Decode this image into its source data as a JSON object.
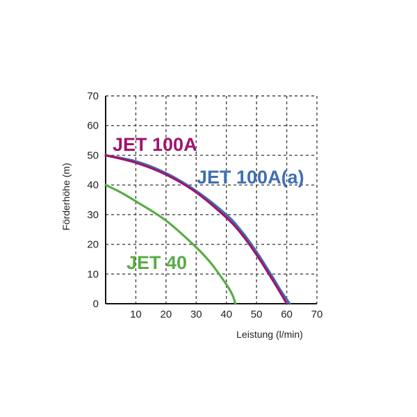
{
  "chart_data": {
    "type": "line",
    "xlabel": "Leistung (l/min)",
    "ylabel": "Förderhöhe (m)",
    "xlim": [
      0,
      70
    ],
    "ylim": [
      0,
      70
    ],
    "xticks": [
      "10",
      "20",
      "30",
      "40",
      "50",
      "60",
      "70"
    ],
    "yticks": [
      "0",
      "10",
      "20",
      "30",
      "40",
      "50",
      "60",
      "70"
    ],
    "grid": true,
    "series": [
      {
        "name": "JET 100A",
        "color": "#a0136e",
        "x": [
          0,
          10,
          20,
          30,
          40,
          45,
          50,
          55,
          58,
          60
        ],
        "y": [
          50,
          47.5,
          43.5,
          37.5,
          29,
          23.5,
          16.5,
          8.5,
          3.5,
          0
        ]
      },
      {
        "name": "JET 100A(a)",
        "color": "#3f6fb0",
        "x": [
          0,
          10,
          20,
          30,
          40,
          45,
          50,
          55,
          58,
          61
        ],
        "y": [
          50,
          48,
          44,
          38,
          30,
          24.5,
          17.5,
          9.5,
          4.5,
          0
        ]
      },
      {
        "name": "JET 40",
        "color": "#5aac46",
        "x": [
          0,
          5,
          10,
          20,
          30,
          35,
          40,
          42,
          43
        ],
        "y": [
          40,
          37.5,
          34.5,
          28,
          19,
          13.5,
          6.5,
          3,
          0
        ]
      }
    ]
  }
}
